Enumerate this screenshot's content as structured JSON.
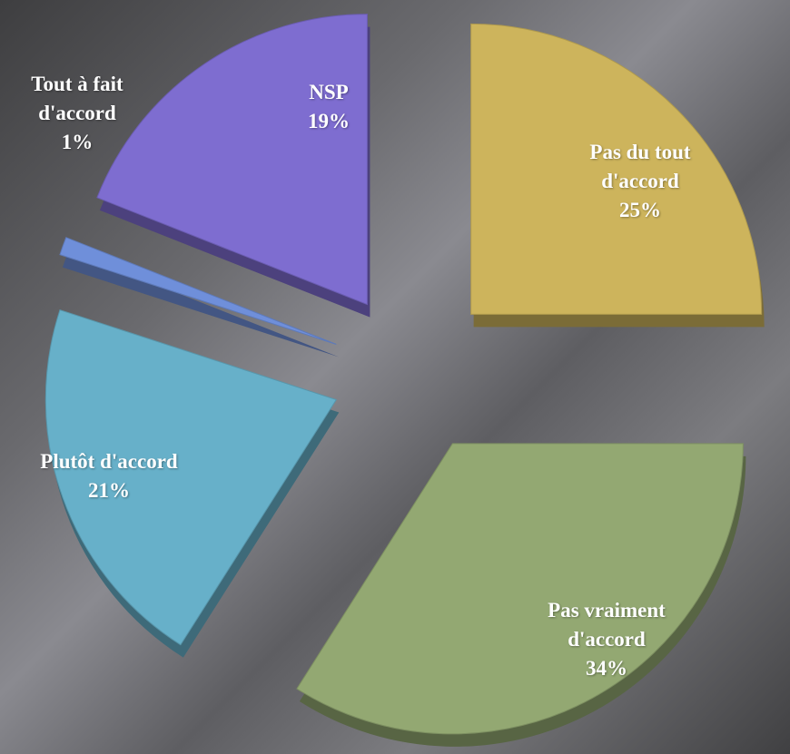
{
  "chart_data": {
    "type": "pie",
    "categories": [
      "Pas du tout d'accord",
      "Pas vraiment d'accord",
      "Plutôt d'accord",
      "Tout à fait d'accord",
      "NSP"
    ],
    "values": [
      25,
      34,
      21,
      1,
      19
    ],
    "value_labels": [
      "25%",
      "34%",
      "21%",
      "1%",
      "19%"
    ],
    "colors": [
      "#cdb45c",
      "#93a872",
      "#67b0c9",
      "#6f8fda",
      "#7e6dd0"
    ]
  }
}
